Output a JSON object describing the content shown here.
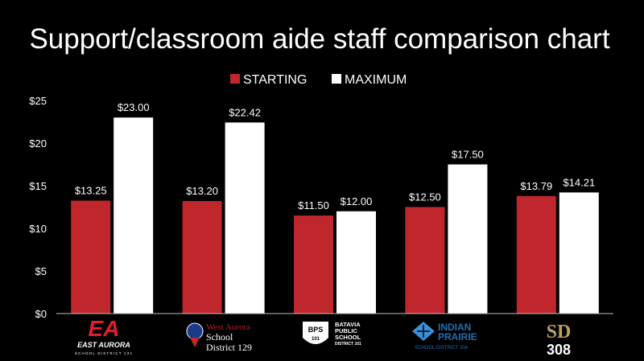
{
  "chart_data": {
    "type": "bar",
    "title": "Support/classroom aide staff comparison chart",
    "xlabel": "",
    "ylabel": "",
    "ylim": [
      0,
      25
    ],
    "y_ticks": [
      "$0",
      "$5",
      "$10",
      "$15",
      "$20",
      "$25"
    ],
    "y_tick_values": [
      0,
      5,
      10,
      15,
      20,
      25
    ],
    "grid": false,
    "legend_position": "top-center",
    "categories": [
      {
        "name": "East Aurora School District 131",
        "logo_lines": [
          "EA",
          "EAST AURORA",
          "SCHOOL DISTRICT 131"
        ]
      },
      {
        "name": "West Aurora School District 129",
        "logo_lines": [
          "West Aurora",
          "School",
          "District 129"
        ]
      },
      {
        "name": "Batavia Public School District 101",
        "logo_lines": [
          "BPS",
          "101",
          "BATAVIA",
          "PUBLIC",
          "SCHOOL",
          "DISTRICT 101"
        ]
      },
      {
        "name": "Indian Prairie School District 204",
        "logo_lines": [
          "INDIAN",
          "PRAIRIE",
          "SCHOOL DISTRICT 204"
        ]
      },
      {
        "name": "SD 308",
        "logo_lines": [
          "SD",
          "308"
        ]
      }
    ],
    "series": [
      {
        "name": "STARTING",
        "color": "#c0272d",
        "values": [
          13.25,
          13.2,
          11.5,
          12.5,
          13.79
        ],
        "labels": [
          "$13.25",
          "$13.20",
          "$11.50",
          "$12.50",
          "$13.79"
        ]
      },
      {
        "name": "MAXIMUM",
        "color": "#ffffff",
        "values": [
          23.0,
          22.42,
          12.0,
          17.5,
          14.21
        ],
        "labels": [
          "$23.00",
          "$22.42",
          "$12.00",
          "$17.50",
          "$14.21"
        ]
      }
    ]
  },
  "colors": {
    "background": "#000000",
    "text": "#ffffff",
    "ea_red": "#e31d2b",
    "west_aurora_red": "#b3202a",
    "indian_prairie_blue": "#1f6fb5",
    "sd308_gold": "#b8a161"
  }
}
